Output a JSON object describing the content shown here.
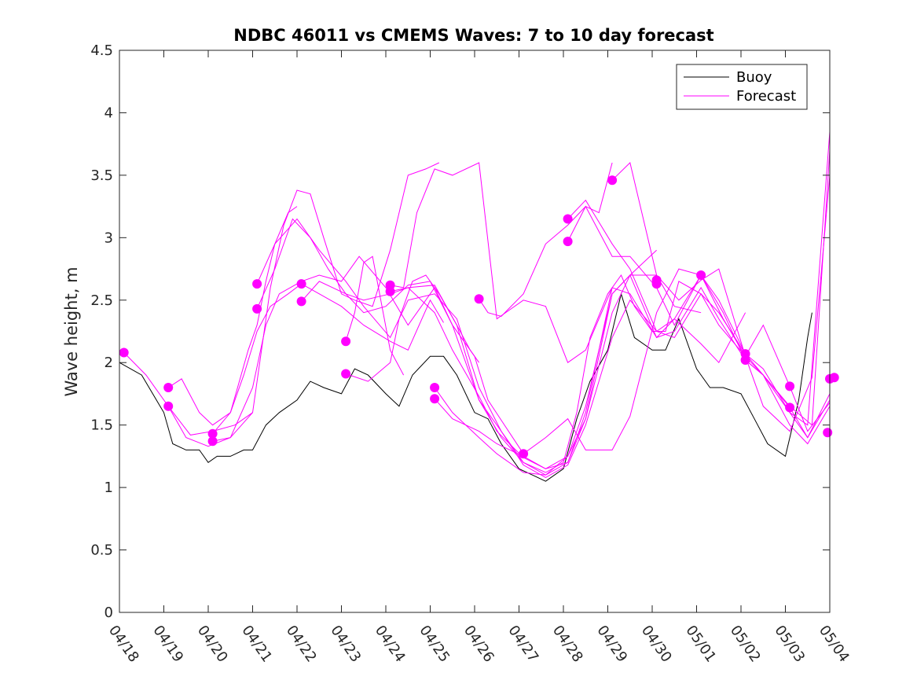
{
  "chart_data": {
    "type": "line",
    "title": "NDBC 46011 vs CMEMS Waves: 7 to 10 day forecast",
    "xlabel": "",
    "ylabel": "Wave height, m",
    "xlim": [
      "04/18",
      "05/04"
    ],
    "ylim": [
      0,
      4.5
    ],
    "x_ticks": [
      "04/18",
      "04/19",
      "04/20",
      "04/21",
      "04/22",
      "04/23",
      "04/24",
      "04/25",
      "04/26",
      "04/27",
      "04/28",
      "04/29",
      "04/30",
      "05/01",
      "05/02",
      "05/03",
      "05/04"
    ],
    "y_ticks": [
      "0",
      "0.5",
      "1",
      "1.5",
      "2",
      "2.5",
      "3",
      "3.5",
      "4",
      "4.5"
    ],
    "grid": false,
    "legend_position": "top-right",
    "colors": {
      "buoy": "#000000",
      "forecast": "#ff00ff"
    },
    "series": [
      {
        "name": "Buoy",
        "color": "#000000",
        "x_days": [
          0,
          0.5,
          1,
          1.2,
          1.5,
          1.8,
          2.0,
          2.2,
          2.5,
          2.8,
          3.0,
          3.3,
          3.6,
          4.0,
          4.3,
          4.6,
          5.0,
          5.3,
          5.6,
          6.0,
          6.3,
          6.6,
          7.0,
          7.3,
          7.6,
          8.0,
          8.3,
          8.6,
          9.0,
          9.3,
          9.6,
          10.0,
          10.3,
          10.6,
          11.0,
          11.3,
          11.6,
          12.0,
          12.3,
          12.6,
          13.0,
          13.3,
          13.6,
          14.0,
          14.3,
          14.6,
          15.0,
          15.3,
          15.5,
          15.6
        ],
        "y": [
          2.0,
          1.9,
          1.6,
          1.35,
          1.3,
          1.3,
          1.2,
          1.25,
          1.25,
          1.3,
          1.3,
          1.5,
          1.6,
          1.7,
          1.85,
          1.8,
          1.75,
          1.95,
          1.9,
          1.75,
          1.65,
          1.9,
          2.05,
          2.05,
          1.9,
          1.6,
          1.55,
          1.35,
          1.15,
          1.1,
          1.05,
          1.15,
          1.55,
          1.85,
          2.1,
          2.55,
          2.2,
          2.1,
          2.1,
          2.35,
          1.95,
          1.8,
          1.8,
          1.75,
          1.55,
          1.35,
          1.25,
          1.7,
          2.2,
          2.4
        ]
      },
      {
        "name": "",
        "color": "#ff00ff",
        "x_days": [
          0.1,
          0.6,
          1.1,
          1.6,
          2.1,
          2.6,
          3.0
        ],
        "y": [
          2.08,
          1.9,
          1.65,
          1.42,
          1.45,
          1.5,
          1.6
        ]
      },
      {
        "name": "",
        "color": "#ff00ff",
        "x_days": [
          1.1,
          1.4,
          1.8,
          2.1,
          2.5,
          2.8,
          3.1,
          3.4,
          3.8,
          4.1,
          4.5,
          5.0,
          5.5,
          6.1,
          6.5,
          7.0,
          7.3
        ],
        "y": [
          1.8,
          1.87,
          1.6,
          1.5,
          1.6,
          1.9,
          2.25,
          2.45,
          2.55,
          2.63,
          2.55,
          2.45,
          2.3,
          2.17,
          2.1,
          2.5,
          2.32
        ]
      },
      {
        "name": "",
        "color": "#ff00ff",
        "x_days": [
          1.1,
          1.5,
          2.0,
          2.5,
          3.0,
          3.3,
          3.6,
          4.1,
          4.5,
          5.0,
          5.4,
          6.0,
          6.5,
          7.1,
          7.5,
          8.0,
          8.3,
          9.1
        ],
        "y": [
          1.65,
          1.4,
          1.33,
          1.4,
          1.8,
          2.3,
          2.55,
          2.65,
          2.7,
          2.65,
          2.85,
          2.6,
          2.3,
          2.6,
          2.3,
          2.05,
          1.7,
          1.27
        ]
      },
      {
        "name": "",
        "color": "#ff00ff",
        "x_days": [
          2.1,
          2.5,
          2.9,
          3.1,
          3.3,
          3.5,
          3.8,
          4.0
        ],
        "y": [
          1.43,
          1.6,
          2.1,
          2.3,
          2.65,
          2.95,
          3.2,
          3.25
        ]
      },
      {
        "name": "",
        "color": "#ff00ff",
        "x_days": [
          2.1,
          2.5,
          3.0,
          3.4,
          3.7,
          4.0,
          4.3,
          4.6,
          5.0,
          5.3,
          5.7,
          6.1,
          6.5,
          6.9,
          7.2
        ],
        "y": [
          1.37,
          1.4,
          1.6,
          2.6,
          3.1,
          3.38,
          3.35,
          3.0,
          2.55,
          2.5,
          2.45,
          2.9,
          3.5,
          3.55,
          3.6
        ]
      },
      {
        "name": "",
        "color": "#ff00ff",
        "x_days": [
          3.1,
          3.5,
          3.9,
          4.3,
          4.7,
          5.1,
          5.5,
          6.0,
          6.5,
          7.0,
          7.5,
          8.1,
          8.6,
          9.1,
          9.6,
          10.0,
          10.3,
          10.6,
          11.0,
          11.3,
          11.6,
          12.0,
          12.3,
          12.6,
          13.1,
          13.5,
          14.1,
          14.5,
          15.1,
          15.6,
          16.0
        ],
        "y": [
          2.43,
          2.75,
          3.15,
          3.0,
          2.75,
          2.55,
          2.4,
          2.45,
          2.62,
          2.65,
          2.3,
          1.7,
          1.4,
          1.2,
          1.12,
          1.2,
          1.6,
          2.2,
          2.55,
          2.7,
          2.45,
          2.25,
          2.25,
          2.65,
          2.55,
          2.3,
          2.05,
          1.65,
          1.45,
          1.88,
          3.5
        ]
      },
      {
        "name": "",
        "color": "#ff00ff",
        "x_days": [
          3.1,
          3.5,
          4.0,
          4.5,
          5.1,
          5.5,
          6.1,
          6.5,
          7.1,
          7.6,
          8.1,
          8.6,
          9.1,
          9.6,
          10.1,
          10.5,
          11.1,
          11.5,
          12.1,
          12.5,
          13.1,
          13.5,
          14.1,
          14.5,
          15.1,
          15.5,
          16.0
        ],
        "y": [
          2.63,
          2.95,
          3.15,
          2.9,
          2.65,
          2.45,
          2.2,
          2.5,
          2.55,
          2.35,
          1.8,
          1.45,
          1.2,
          1.1,
          1.25,
          1.55,
          2.55,
          2.7,
          2.2,
          2.25,
          2.6,
          2.35,
          2.02,
          1.9,
          1.6,
          1.4,
          1.75
        ]
      },
      {
        "name": "",
        "color": "#ff00ff",
        "x_days": [
          4.1,
          4.5,
          5.1,
          5.5,
          6.1,
          6.5,
          7.1,
          7.6,
          8.1,
          8.6,
          9.1,
          9.6,
          10.1,
          10.5,
          11.1,
          11.5,
          12.1,
          12.5,
          13.1,
          13.5,
          14.1,
          14.5,
          15.1,
          15.5,
          16.0
        ],
        "y": [
          2.49,
          2.65,
          2.55,
          2.5,
          2.55,
          2.6,
          2.62,
          2.3,
          1.7,
          1.45,
          1.18,
          1.08,
          1.18,
          1.5,
          2.2,
          2.5,
          2.25,
          2.2,
          2.55,
          2.4,
          2.07,
          1.9,
          1.5,
          1.35,
          1.65
        ]
      },
      {
        "name": "",
        "color": "#ff00ff",
        "x_days": [
          5.1,
          5.3,
          5.5,
          5.7,
          6.1,
          6.4
        ],
        "y": [
          2.17,
          2.4,
          2.8,
          2.85,
          2.1,
          1.9
        ]
      },
      {
        "name": "",
        "color": "#ff00ff",
        "x_days": [
          5.1,
          5.6,
          6.1,
          6.3,
          6.6,
          6.9,
          7.2,
          7.6,
          7.9,
          8.1
        ],
        "y": [
          1.91,
          1.85,
          2.0,
          2.35,
          2.65,
          2.7,
          2.55,
          2.3,
          2.1,
          2.0
        ]
      },
      {
        "name": "",
        "color": "#ff00ff",
        "x_days": [
          6.1,
          6.4,
          6.7,
          7.1,
          7.5,
          8.1,
          8.5,
          9.1,
          9.6,
          10.1,
          10.5,
          11.1
        ],
        "y": [
          2.62,
          2.6,
          3.2,
          3.55,
          3.5,
          3.6,
          2.35,
          2.5,
          2.45,
          2.0,
          2.1,
          2.6
        ]
      },
      {
        "name": "",
        "color": "#ff00ff",
        "x_days": [
          6.1,
          6.5,
          7.1,
          7.5,
          8.1,
          8.5,
          9.1,
          9.6,
          10.1,
          10.5,
          11.1,
          11.5,
          12.1
        ],
        "y": [
          2.57,
          2.6,
          2.4,
          2.1,
          1.73,
          1.45,
          1.24,
          1.15,
          1.25,
          1.65,
          2.55,
          2.7,
          2.9
        ]
      },
      {
        "name": "",
        "color": "#ff00ff",
        "x_days": [
          7.1,
          7.5,
          8.1,
          8.5,
          9.1,
          9.6,
          10.1,
          10.5,
          11.1,
          11.5,
          12.1,
          12.5,
          13.1
        ],
        "y": [
          1.8,
          1.6,
          1.4,
          1.27,
          1.12,
          1.1,
          1.2,
          1.55,
          2.4,
          2.7,
          2.7,
          2.45,
          2.4
        ]
      },
      {
        "name": "",
        "color": "#ff00ff",
        "x_days": [
          7.1,
          7.5,
          8.1,
          8.5,
          9.1,
          9.6,
          10.1,
          10.5,
          11.1,
          11.5,
          12.1,
          12.5,
          13.1,
          13.5,
          14.1
        ],
        "y": [
          1.71,
          1.55,
          1.45,
          1.35,
          1.25,
          1.15,
          1.2,
          1.6,
          2.6,
          2.55,
          2.2,
          2.35,
          2.15,
          2.0,
          2.4
        ]
      },
      {
        "name": "",
        "color": "#ff00ff",
        "x_days": [
          8.1,
          8.3,
          8.6,
          9.1,
          9.6,
          10.1,
          10.5,
          10.8,
          11.1
        ],
        "y": [
          2.51,
          2.4,
          2.37,
          2.55,
          2.95,
          3.1,
          3.25,
          3.2,
          3.6
        ]
      },
      {
        "name": "",
        "color": "#ff00ff",
        "x_days": [
          9.1,
          9.6,
          10.1,
          10.5,
          11.1,
          11.5,
          12.1,
          12.6,
          13.1,
          13.6,
          14.1,
          14.5,
          15.1,
          15.5,
          16.0
        ],
        "y": [
          1.27,
          1.4,
          1.55,
          1.3,
          1.3,
          1.57,
          2.4,
          2.75,
          2.7,
          2.35,
          2.05,
          1.9,
          1.64,
          1.4,
          1.7
        ]
      },
      {
        "name": "",
        "color": "#ff00ff",
        "x_days": [
          10.1,
          10.5,
          11.1,
          11.5,
          12.1,
          12.5,
          13.1,
          13.5,
          14.1,
          14.5,
          15.1,
          15.5,
          16.0
        ],
        "y": [
          3.15,
          3.3,
          2.95,
          2.75,
          2.25,
          2.35,
          2.7,
          2.5,
          2.07,
          1.95,
          1.6,
          1.5,
          3.85
        ]
      },
      {
        "name": "",
        "color": "#ff00ff",
        "x_days": [
          10.1,
          10.5,
          11.1,
          11.5,
          12.1,
          12.5,
          13.1,
          13.6,
          14.1,
          14.5,
          15.1,
          15.6,
          16.0
        ],
        "y": [
          2.97,
          3.25,
          2.85,
          2.85,
          2.6,
          2.3,
          2.7,
          2.4,
          2.02,
          1.9,
          1.65,
          1.5,
          3.7
        ]
      },
      {
        "name": "",
        "color": "#ff00ff",
        "x_days": [
          11.1,
          11.5,
          12.1,
          12.6,
          13.1,
          13.5,
          14.1,
          14.5,
          15.1,
          15.5,
          16.0
        ],
        "y": [
          3.46,
          3.6,
          2.7,
          2.5,
          2.66,
          2.75,
          2.05,
          2.3,
          1.81,
          1.45,
          1.68
        ]
      }
    ],
    "markers": {
      "color": "#ff00ff",
      "points": [
        [
          0.1,
          2.08
        ],
        [
          1.1,
          1.8
        ],
        [
          1.1,
          1.65
        ],
        [
          2.1,
          1.43
        ],
        [
          2.1,
          1.37
        ],
        [
          3.1,
          2.63
        ],
        [
          3.1,
          2.43
        ],
        [
          4.1,
          2.63
        ],
        [
          4.1,
          2.49
        ],
        [
          5.1,
          2.17
        ],
        [
          5.1,
          1.91
        ],
        [
          6.1,
          2.62
        ],
        [
          6.1,
          2.57
        ],
        [
          7.1,
          1.8
        ],
        [
          7.1,
          1.71
        ],
        [
          8.1,
          2.51
        ],
        [
          9.1,
          1.27
        ],
        [
          10.1,
          3.15
        ],
        [
          10.1,
          2.97
        ],
        [
          11.1,
          3.46
        ],
        [
          12.1,
          2.66
        ],
        [
          12.1,
          2.63
        ],
        [
          13.1,
          2.7
        ],
        [
          14.1,
          2.07
        ],
        [
          14.1,
          2.02
        ],
        [
          15.1,
          1.81
        ],
        [
          15.1,
          1.64
        ],
        [
          16.1,
          1.88
        ],
        [
          16.0,
          1.87
        ],
        [
          15.95,
          1.44
        ]
      ]
    }
  }
}
